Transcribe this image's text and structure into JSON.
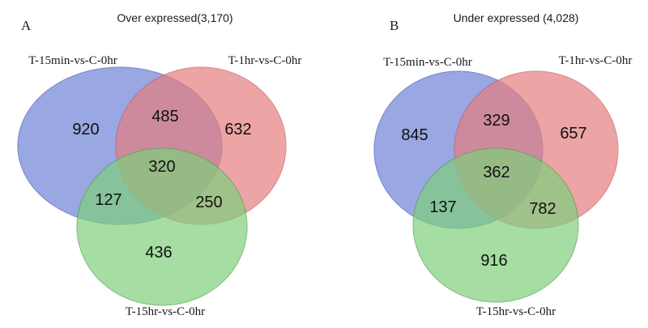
{
  "panels": [
    {
      "letter": "A",
      "title": "Over expressed(3,170)",
      "sets": {
        "a": {
          "label": "T-15min-vs-C-0hr",
          "color": "#6f82d6",
          "stroke": "#4d5fb8"
        },
        "b": {
          "label": "T-1hr-vs-C-0hr",
          "color": "#e57e80",
          "stroke": "#cc5f62"
        },
        "c": {
          "label": "T-15hr-vs-C-0hr",
          "color": "#7fcf7c",
          "stroke": "#55aa52"
        }
      },
      "regions": {
        "a_only": "920",
        "b_only": "632",
        "c_only": "436",
        "ab": "485",
        "ac": "127",
        "bc": "250",
        "abc": "320"
      }
    },
    {
      "letter": "B",
      "title": "Under expressed (4,028)",
      "sets": {
        "a": {
          "label": "T-15min-vs-C-0hr",
          "color": "#6f82d6",
          "stroke": "#4d5fb8"
        },
        "b": {
          "label": "T-1hr-vs-C-0hr",
          "color": "#e57e80",
          "stroke": "#cc5f62"
        },
        "c": {
          "label": "T-15hr-vs-C-0hr",
          "color": "#7fcf7c",
          "stroke": "#55aa52"
        }
      },
      "regions": {
        "a_only": "845",
        "b_only": "657",
        "c_only": "916",
        "ab": "329",
        "ac": "137",
        "bc": "782",
        "abc": "362"
      }
    }
  ]
}
